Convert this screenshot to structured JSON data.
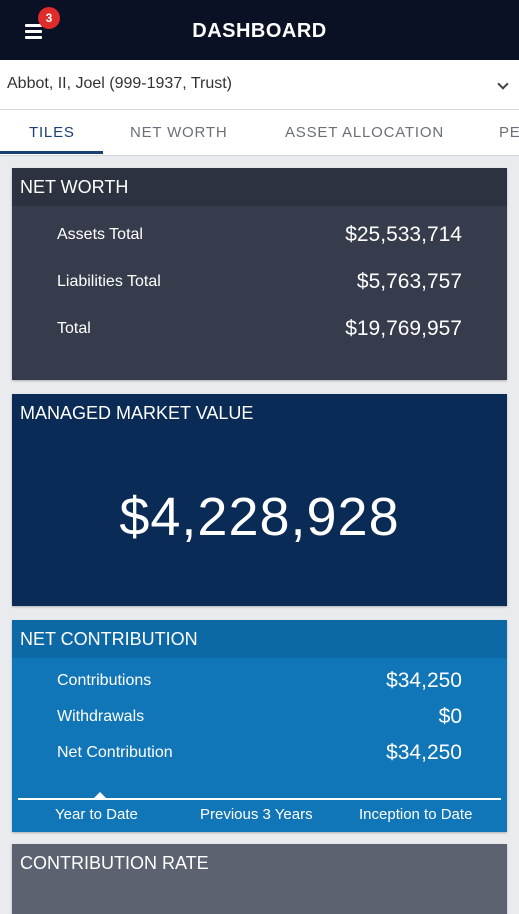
{
  "header": {
    "title": "DASHBOARD",
    "notification_count": "3"
  },
  "account": {
    "selected": "Abbot, II, Joel (999-1937, Trust)"
  },
  "tabs": [
    {
      "label": "TILES",
      "active": true
    },
    {
      "label": "NET WORTH",
      "active": false
    },
    {
      "label": "ASSET ALLOCATION",
      "active": false
    },
    {
      "label": "PE",
      "active": false
    }
  ],
  "net_worth": {
    "title": "NET WORTH",
    "rows": [
      {
        "label": "Assets Total",
        "value": "$25,533,714"
      },
      {
        "label": "Liabilities Total",
        "value": "$5,763,757"
      },
      {
        "label": "Total",
        "value": "$19,769,957"
      }
    ]
  },
  "managed_market_value": {
    "title": "MANAGED MARKET VALUE",
    "value": "$4,228,928"
  },
  "net_contribution": {
    "title": "NET CONTRIBUTION",
    "rows": [
      {
        "label": "Contributions",
        "value": "$34,250"
      },
      {
        "label": "Withdrawals",
        "value": "$0"
      },
      {
        "label": "Net Contribution",
        "value": "$34,250"
      }
    ],
    "periods": [
      "Year to Date",
      "Previous 3 Years",
      "Inception to Date"
    ],
    "selected_period": "Year to Date"
  },
  "contribution_rate": {
    "title": "CONTRIBUTION RATE"
  },
  "colors": {
    "topbar": "#0a1124",
    "net_worth_card": "#373c4c",
    "market_value_card": "#0a2b56",
    "net_contribution_card": "#1076b7",
    "contribution_rate_card": "#5c6270",
    "badge": "#e02b2b",
    "tab_active": "#1a3f74"
  }
}
